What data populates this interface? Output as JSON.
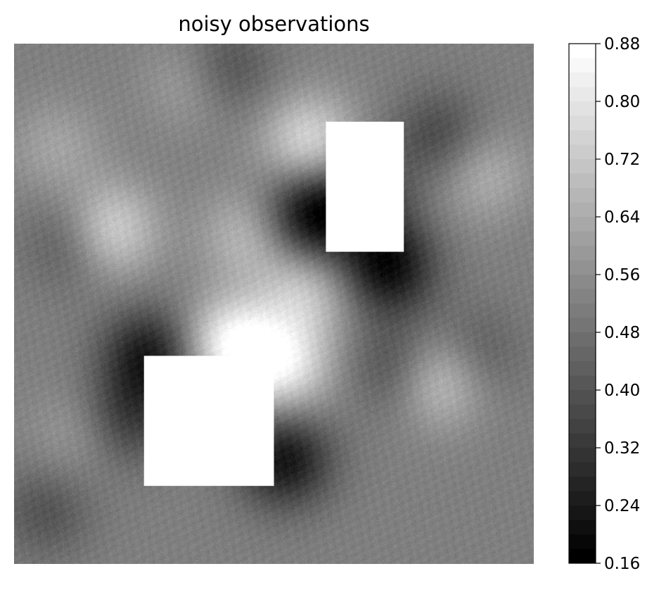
{
  "chart_data": {
    "type": "heatmap",
    "title": "noisy observations",
    "xlabel": "",
    "ylabel": "",
    "axes_visible": false,
    "colormap": "gray",
    "grid": false,
    "legend": "none",
    "missing_regions_color": "#ffffff",
    "colorbar": {
      "position": "right",
      "vmin": 0.16,
      "vmax": 0.88,
      "ticks": [
        "0.16",
        "0.24",
        "0.32",
        "0.40",
        "0.48",
        "0.56",
        "0.64",
        "0.72",
        "0.80",
        "0.88"
      ]
    },
    "missing_regions": [
      {
        "name": "upper-right-gap",
        "x_range": [
          0.6,
          0.75
        ],
        "y_range": [
          0.6,
          0.85
        ]
      },
      {
        "name": "lower-left-gap",
        "x_range": [
          0.25,
          0.5
        ],
        "y_range": [
          0.15,
          0.4
        ]
      }
    ],
    "field_features": [
      {
        "kind": "low",
        "x": 0.57,
        "y": 0.67,
        "value": 0.18
      },
      {
        "kind": "low",
        "x": 0.72,
        "y": 0.57,
        "value": 0.2
      },
      {
        "kind": "low",
        "x": 0.52,
        "y": 0.2,
        "value": 0.22
      },
      {
        "kind": "low",
        "x": 0.26,
        "y": 0.4,
        "value": 0.24
      },
      {
        "kind": "low",
        "x": 0.12,
        "y": 0.62,
        "value": 0.36
      },
      {
        "kind": "low",
        "x": 0.22,
        "y": 0.28,
        "value": 0.34
      },
      {
        "kind": "low",
        "x": 0.4,
        "y": 0.95,
        "value": 0.34
      },
      {
        "kind": "low",
        "x": 0.67,
        "y": 0.7,
        "value": 0.34
      },
      {
        "kind": "low",
        "x": 0.82,
        "y": 0.82,
        "value": 0.36
      },
      {
        "kind": "low",
        "x": 0.74,
        "y": 0.38,
        "value": 0.36
      },
      {
        "kind": "low",
        "x": 0.88,
        "y": 0.4,
        "value": 0.38
      },
      {
        "kind": "low",
        "x": 0.06,
        "y": 0.1,
        "value": 0.4
      },
      {
        "kind": "high",
        "x": 0.42,
        "y": 0.42,
        "value": 0.86
      },
      {
        "kind": "high",
        "x": 0.18,
        "y": 0.64,
        "value": 0.8
      },
      {
        "kind": "high",
        "x": 0.52,
        "y": 0.38,
        "value": 0.8
      },
      {
        "kind": "high",
        "x": 0.82,
        "y": 0.36,
        "value": 0.78
      },
      {
        "kind": "high",
        "x": 0.57,
        "y": 0.81,
        "value": 0.78
      },
      {
        "kind": "high",
        "x": 0.56,
        "y": 0.52,
        "value": 0.72
      },
      {
        "kind": "high",
        "x": 0.45,
        "y": 0.63,
        "value": 0.68
      },
      {
        "kind": "high",
        "x": 0.35,
        "y": 0.93,
        "value": 0.66
      },
      {
        "kind": "high",
        "x": 0.9,
        "y": 0.75,
        "value": 0.66
      },
      {
        "kind": "high",
        "x": 0.08,
        "y": 0.8,
        "value": 0.62
      },
      {
        "kind": "high",
        "x": 0.12,
        "y": 0.25,
        "value": 0.6
      }
    ]
  }
}
